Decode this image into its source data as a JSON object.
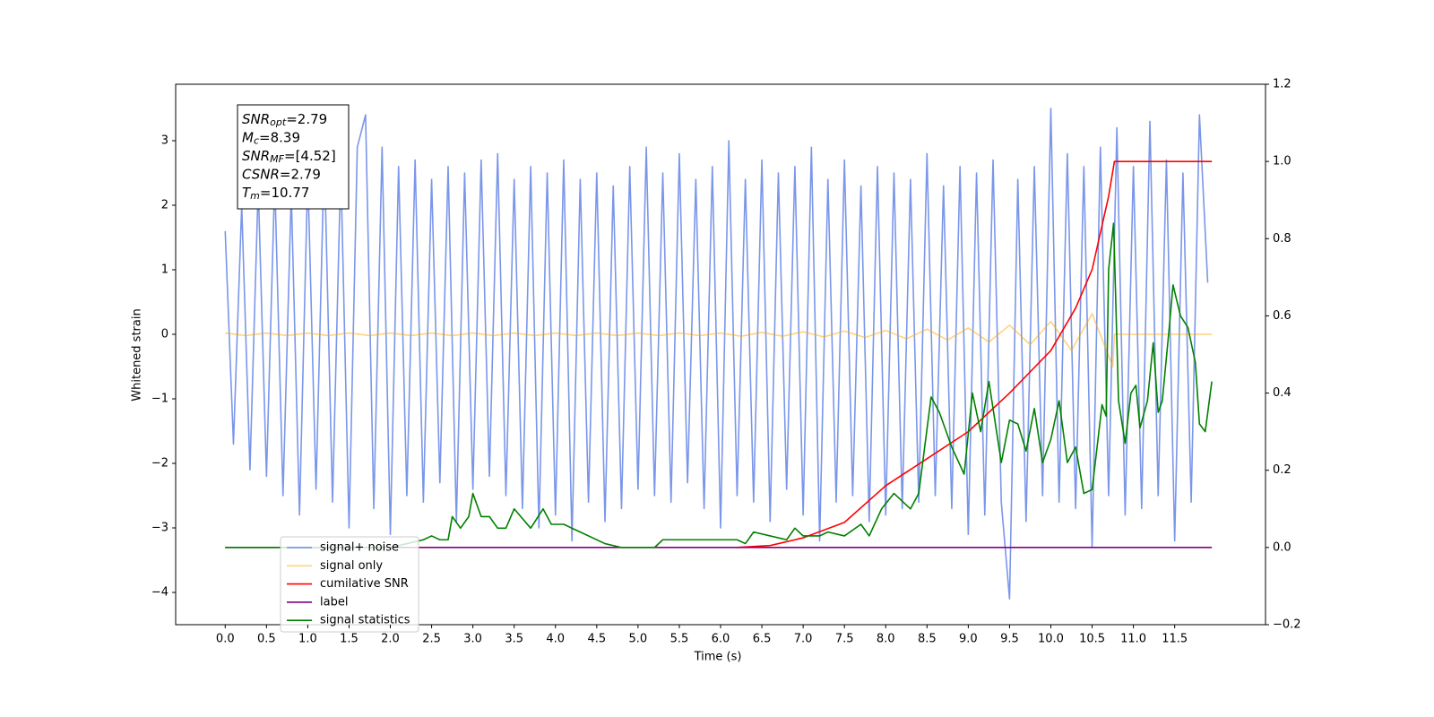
{
  "chart_data": {
    "type": "line",
    "xlabel": "Time (s)",
    "ylabel": "Whitened strain",
    "xlim": [
      -0.6,
      12.6
    ],
    "ylim": [
      -4.5,
      3.875
    ],
    "y2lim": [
      -0.2,
      1.2
    ],
    "xticks": [
      {
        "value": 0,
        "label": "0.0"
      },
      0.5,
      {
        "value": 1,
        "label": "1.0"
      },
      1.5,
      {
        "value": 2,
        "label": "2.0"
      },
      2.5,
      {
        "value": 3,
        "label": "3.0"
      },
      3.5,
      {
        "value": 4,
        "label": "4.0"
      },
      4.5,
      {
        "value": 5,
        "label": "5.0"
      },
      5.5,
      {
        "value": 6,
        "label": "6.0"
      },
      6.5,
      {
        "value": 7,
        "label": "7.0"
      },
      7.5,
      {
        "value": 8,
        "label": "8.0"
      },
      8.5,
      {
        "value": 9,
        "label": "9.0"
      },
      9.5,
      {
        "value": 10,
        "label": "10.0"
      },
      10.5,
      {
        "value": 11,
        "label": "11.0"
      },
      11.5
    ],
    "yticks": [
      {
        "value": -4,
        "label": "−4"
      },
      {
        "value": -3,
        "label": "−3"
      },
      {
        "value": -2,
        "label": "−2"
      },
      {
        "value": -1,
        "label": "−1"
      },
      0,
      1,
      2,
      3
    ],
    "y2ticks": [
      {
        "value": -0.2,
        "label": "−0.2"
      },
      {
        "value": 0,
        "label": "0.0"
      },
      0.2,
      0.4,
      0.6,
      0.8,
      {
        "value": 1,
        "label": "1.0"
      },
      1.2
    ],
    "legend": "lower left",
    "annotation": {
      "lines": [
        {
          "symbol": "SNR",
          "subscript": "opt",
          "text": "=2.79"
        },
        {
          "symbol": "M",
          "subscript": "c",
          "text": "=8.39"
        },
        {
          "symbol": "SNR",
          "subscript": "MF",
          "text": "=[4.52]"
        },
        {
          "symbol": "CSNR",
          "subscript": null,
          "text": "=2.79"
        },
        {
          "symbol": "T",
          "subscript": "m",
          "text": "=10.77"
        }
      ]
    },
    "series": [
      {
        "name": "signal+ noise",
        "color": "#4169e1",
        "alpha": 0.7,
        "axis": "y",
        "x": [
          0,
          0.1,
          0.2,
          0.3,
          0.4,
          0.5,
          0.6,
          0.7,
          0.8,
          0.9,
          1,
          1.1,
          1.2,
          1.3,
          1.4,
          1.5,
          1.6,
          1.7,
          1.8,
          1.9,
          2,
          2.1,
          2.2,
          2.3,
          2.4,
          2.5,
          2.6,
          2.7,
          2.8,
          2.9,
          3,
          3.1,
          3.2,
          3.3,
          3.4,
          3.5,
          3.6,
          3.7,
          3.8,
          3.9,
          4,
          4.1,
          4.2,
          4.3,
          4.4,
          4.5,
          4.6,
          4.7,
          4.8,
          4.9,
          5,
          5.1,
          5.2,
          5.3,
          5.4,
          5.5,
          5.6,
          5.7,
          5.8,
          5.9,
          6,
          6.1,
          6.2,
          6.3,
          6.4,
          6.5,
          6.6,
          6.7,
          6.8,
          6.9,
          7,
          7.1,
          7.2,
          7.3,
          7.4,
          7.5,
          7.6,
          7.7,
          7.8,
          7.9,
          8,
          8.1,
          8.2,
          8.3,
          8.4,
          8.5,
          8.6,
          8.7,
          8.8,
          8.9,
          9,
          9.1,
          9.2,
          9.3,
          9.4,
          9.5,
          9.6,
          9.7,
          9.8,
          9.9,
          10,
          10.1,
          10.2,
          10.3,
          10.4,
          10.5,
          10.6,
          10.7,
          10.8,
          10.9,
          11,
          11.1,
          11.2,
          11.3,
          11.4,
          11.5,
          11.6,
          11.7,
          11.8,
          11.9
        ],
        "values": [
          1.6,
          -1.7,
          2.0,
          -2.1,
          2.3,
          -2.2,
          2.4,
          -2.5,
          2.2,
          -2.8,
          2.5,
          -2.4,
          2.8,
          -2.6,
          2.6,
          -3.0,
          2.9,
          3.4,
          -2.7,
          2.9,
          -3.1,
          2.6,
          -2.5,
          2.7,
          -2.6,
          2.4,
          -2.3,
          2.6,
          -2.9,
          2.5,
          -2.4,
          2.7,
          -2.2,
          2.8,
          -2.5,
          2.4,
          -2.7,
          2.6,
          -3.0,
          2.5,
          -2.8,
          2.7,
          -3.2,
          2.4,
          -2.6,
          2.5,
          -2.9,
          2.3,
          -2.7,
          2.6,
          -2.4,
          2.9,
          -2.5,
          2.5,
          -2.6,
          2.8,
          -2.3,
          2.4,
          -2.7,
          2.6,
          -3.0,
          3.0,
          -2.5,
          2.4,
          -2.6,
          2.7,
          -2.9,
          2.5,
          -2.4,
          2.6,
          -2.8,
          2.9,
          -3.2,
          2.4,
          -2.6,
          2.7,
          -2.5,
          2.3,
          -2.9,
          2.6,
          -2.8,
          2.5,
          -2.7,
          2.4,
          -2.6,
          2.8,
          -2.5,
          2.3,
          -2.7,
          2.6,
          -3.1,
          2.5,
          -2.8,
          2.7,
          -2.6,
          -4.1,
          2.4,
          -2.9,
          2.6,
          -2.5,
          3.5,
          -2.6,
          2.8,
          -2.7,
          2.6,
          -3.3,
          2.9,
          -2.5,
          3.2,
          -2.8,
          2.6,
          -2.7,
          3.3,
          -2.5,
          2.7,
          -3.2,
          2.5,
          -2.6,
          3.4,
          0.8
        ]
      },
      {
        "name": "signal only",
        "color": "#ffa500",
        "alpha": 0.5,
        "axis": "y",
        "x": [
          0,
          0.25,
          0.5,
          0.75,
          1,
          1.25,
          1.5,
          1.75,
          2,
          2.25,
          2.5,
          2.75,
          3,
          3.25,
          3.5,
          3.75,
          4,
          4.25,
          4.5,
          4.75,
          5,
          5.25,
          5.5,
          5.75,
          6,
          6.25,
          6.5,
          6.75,
          7,
          7.25,
          7.5,
          7.75,
          8,
          8.25,
          8.5,
          8.75,
          9,
          9.25,
          9.5,
          9.75,
          10,
          10.25,
          10.5,
          10.75,
          10.77,
          11.95
        ],
        "values": [
          0.02,
          -0.02,
          0.02,
          -0.02,
          0.02,
          -0.02,
          0.02,
          -0.02,
          0.02,
          -0.02,
          0.02,
          -0.02,
          0.02,
          -0.02,
          0.02,
          -0.02,
          0.02,
          -0.02,
          0.02,
          -0.02,
          0.02,
          -0.02,
          0.02,
          -0.02,
          0.02,
          -0.03,
          0.03,
          -0.03,
          0.04,
          -0.04,
          0.05,
          -0.05,
          0.06,
          -0.07,
          0.08,
          -0.09,
          0.1,
          -0.12,
          0.14,
          -0.16,
          0.2,
          -0.25,
          0.32,
          -0.5,
          0,
          0
        ]
      },
      {
        "name": "cumilative SNR",
        "color": "#ff0000",
        "alpha": 1,
        "axis": "y2",
        "x": [
          6.2,
          6.6,
          7.0,
          7.5,
          8.0,
          8.5,
          9.0,
          9.5,
          10.0,
          10.3,
          10.5,
          10.7,
          10.77,
          11.95
        ],
        "values": [
          0,
          0.005,
          0.025,
          0.065,
          0.16,
          0.23,
          0.3,
          0.4,
          0.51,
          0.62,
          0.72,
          0.91,
          1.0,
          1.0
        ]
      },
      {
        "name": "label",
        "color": "#800080",
        "alpha": 1,
        "axis": "y2",
        "x": [
          0,
          11.95
        ],
        "values": [
          0,
          0
        ]
      },
      {
        "name": "signal statistics",
        "color": "#008000",
        "alpha": 1,
        "axis": "y2",
        "x": [
          0,
          1.5,
          2.0,
          2.2,
          2.4,
          2.5,
          2.6,
          2.7,
          2.75,
          2.85,
          2.95,
          3.0,
          3.1,
          3.2,
          3.3,
          3.4,
          3.5,
          3.7,
          3.85,
          3.95,
          4.1,
          4.3,
          4.6,
          4.8,
          5.1,
          5.2,
          5.3,
          5.5,
          5.8,
          6.0,
          6.2,
          6.3,
          6.4,
          6.6,
          6.8,
          6.9,
          7.0,
          7.2,
          7.3,
          7.5,
          7.7,
          7.8,
          7.95,
          8.1,
          8.3,
          8.4,
          8.55,
          8.65,
          8.8,
          8.95,
          9.05,
          9.15,
          9.25,
          9.4,
          9.5,
          9.6,
          9.7,
          9.8,
          9.9,
          10.0,
          10.1,
          10.2,
          10.3,
          10.4,
          10.5,
          10.62,
          10.67,
          10.7,
          10.76,
          10.82,
          10.9,
          10.97,
          11.03,
          11.08,
          11.17,
          11.24,
          11.3,
          11.35,
          11.43,
          11.48,
          11.57,
          11.66,
          11.75,
          11.8,
          11.87,
          11.95
        ],
        "values": [
          0,
          0,
          0,
          0.01,
          0.02,
          0.03,
          0.02,
          0.02,
          0.08,
          0.05,
          0.08,
          0.14,
          0.08,
          0.08,
          0.05,
          0.05,
          0.1,
          0.05,
          0.1,
          0.06,
          0.06,
          0.04,
          0.01,
          0,
          0,
          0,
          0.02,
          0.02,
          0.02,
          0.02,
          0.02,
          0.01,
          0.04,
          0.03,
          0.02,
          0.05,
          0.03,
          0.03,
          0.04,
          0.03,
          0.06,
          0.03,
          0.1,
          0.14,
          0.1,
          0.14,
          0.39,
          0.35,
          0.26,
          0.19,
          0.4,
          0.3,
          0.43,
          0.22,
          0.33,
          0.32,
          0.25,
          0.36,
          0.22,
          0.28,
          0.38,
          0.22,
          0.26,
          0.14,
          0.15,
          0.37,
          0.34,
          0.72,
          0.84,
          0.38,
          0.27,
          0.4,
          0.42,
          0.31,
          0.38,
          0.53,
          0.35,
          0.38,
          0.56,
          0.68,
          0.6,
          0.57,
          0.48,
          0.32,
          0.3,
          0.43
        ]
      }
    ]
  }
}
